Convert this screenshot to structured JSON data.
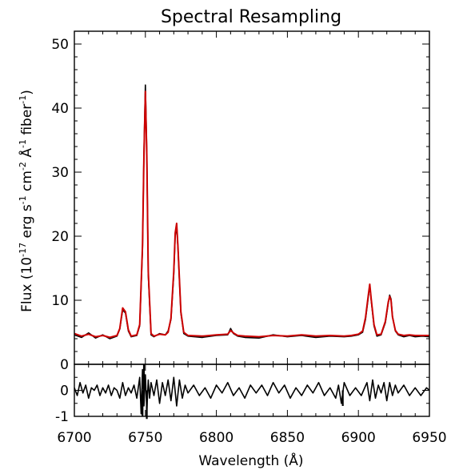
{
  "chart_data": [
    {
      "type": "line",
      "title": "Spectral Resampling",
      "xlabel": "",
      "ylabel_parts": {
        "base": "Flux (10",
        "exp1": "-17",
        "mid1": " erg s",
        "exp2": "-1",
        "mid2": " cm",
        "exp3": "-2",
        "mid3": " Å",
        "exp4": "-1",
        "mid4": " fiber",
        "exp5": "-1",
        "end": ")"
      },
      "xlim": [
        6700,
        6950
      ],
      "ylim": [
        0,
        52
      ],
      "yticks": [
        0,
        10,
        20,
        30,
        40,
        50
      ],
      "ytick_labels": [
        "0",
        "10",
        "20",
        "30",
        "40",
        "50"
      ],
      "series": [
        {
          "color": "#000000",
          "x": [
            6700,
            6705,
            6710,
            6715,
            6720,
            6725,
            6730,
            6732,
            6734,
            6736,
            6738,
            6740,
            6744,
            6746,
            6748,
            6749,
            6750,
            6751,
            6752,
            6754,
            6756,
            6760,
            6764,
            6766,
            6768,
            6770,
            6771,
            6772,
            6773,
            6775,
            6777,
            6780,
            6790,
            6800,
            6808,
            6810,
            6812,
            6815,
            6820,
            6830,
            6840,
            6850,
            6860,
            6870,
            6880,
            6890,
            6895,
            6900,
            6903,
            6905,
            6907,
            6908,
            6909,
            6911,
            6913,
            6916,
            6919,
            6921,
            6922,
            6923,
            6924,
            6926,
            6928,
            6932,
            6936,
            6940,
            6945,
            6950
          ],
          "values": [
            4.6,
            4.2,
            4.9,
            4.1,
            4.6,
            4.0,
            4.4,
            5.5,
            8.5,
            8.0,
            5.2,
            4.3,
            4.5,
            6.0,
            18.0,
            33.0,
            43.6,
            33.0,
            14.0,
            4.6,
            4.3,
            4.8,
            4.6,
            5.2,
            7.0,
            14.0,
            20.0,
            21.8,
            18.0,
            8.0,
            4.8,
            4.4,
            4.2,
            4.5,
            4.6,
            5.6,
            4.8,
            4.4,
            4.2,
            4.1,
            4.6,
            4.3,
            4.5,
            4.2,
            4.4,
            4.3,
            4.4,
            4.6,
            5.0,
            7.0,
            10.5,
            12.3,
            10.0,
            6.0,
            4.4,
            4.6,
            6.5,
            9.5,
            10.8,
            10.2,
            7.5,
            5.2,
            4.6,
            4.3,
            4.5,
            4.3,
            4.4,
            4.3
          ]
        },
        {
          "color": "#cc0000",
          "x": [
            6700,
            6705,
            6710,
            6715,
            6720,
            6725,
            6730,
            6732,
            6734,
            6736,
            6738,
            6740,
            6744,
            6746,
            6748,
            6749,
            6750,
            6751,
            6752,
            6754,
            6756,
            6760,
            6764,
            6766,
            6768,
            6770,
            6771,
            6772,
            6773,
            6775,
            6777,
            6780,
            6790,
            6800,
            6808,
            6810,
            6812,
            6815,
            6820,
            6830,
            6840,
            6850,
            6860,
            6870,
            6880,
            6890,
            6895,
            6900,
            6903,
            6905,
            6907,
            6908,
            6909,
            6911,
            6913,
            6916,
            6919,
            6921,
            6922,
            6923,
            6924,
            6926,
            6928,
            6932,
            6936,
            6940,
            6945,
            6950
          ],
          "values": [
            4.8,
            4.4,
            4.7,
            4.3,
            4.5,
            4.2,
            4.5,
            5.6,
            8.8,
            8.2,
            5.4,
            4.4,
            4.6,
            6.2,
            18.5,
            32.5,
            42.6,
            32.5,
            14.5,
            4.8,
            4.4,
            4.7,
            4.6,
            5.0,
            7.2,
            14.5,
            20.5,
            22.0,
            18.2,
            8.2,
            5.0,
            4.5,
            4.4,
            4.6,
            4.7,
            5.3,
            4.9,
            4.5,
            4.4,
            4.3,
            4.5,
            4.4,
            4.6,
            4.4,
            4.5,
            4.4,
            4.5,
            4.7,
            5.2,
            7.3,
            10.8,
            12.5,
            10.2,
            6.2,
            4.6,
            4.7,
            6.7,
            9.7,
            10.6,
            10.0,
            7.4,
            5.3,
            4.7,
            4.5,
            4.6,
            4.5,
            4.5,
            4.5
          ]
        }
      ]
    },
    {
      "type": "line",
      "title": "",
      "xlabel": "Wavelength (Å)",
      "ylabel": "",
      "xlim": [
        6700,
        6950
      ],
      "xticks": [
        6700,
        6750,
        6800,
        6850,
        6900,
        6950
      ],
      "xtick_labels": [
        "6700",
        "6750",
        "6800",
        "6850",
        "6900",
        "6950"
      ],
      "ylim": [
        -1,
        1
      ],
      "yticks": [
        -1,
        0
      ],
      "ytick_labels": [
        "-1",
        "0"
      ],
      "series": [
        {
          "color": "#000000",
          "x": [
            6700,
            6702,
            6704,
            6706,
            6708,
            6710,
            6712,
            6714,
            6716,
            6718,
            6720,
            6722,
            6724,
            6726,
            6728,
            6730,
            6732,
            6734,
            6736,
            6738,
            6740,
            6742,
            6744,
            6746,
            6747,
            6748,
            6749,
            6750,
            6751,
            6752,
            6753,
            6754,
            6756,
            6758,
            6760,
            6762,
            6764,
            6766,
            6768,
            6770,
            6772,
            6774,
            6776,
            6778,
            6780,
            6784,
            6788,
            6792,
            6796,
            6800,
            6804,
            6808,
            6812,
            6816,
            6820,
            6824,
            6828,
            6832,
            6836,
            6840,
            6844,
            6848,
            6852,
            6856,
            6860,
            6864,
            6868,
            6872,
            6876,
            6880,
            6884,
            6886,
            6888,
            6890,
            6894,
            6898,
            6902,
            6906,
            6908,
            6910,
            6912,
            6914,
            6916,
            6918,
            6920,
            6922,
            6924,
            6926,
            6928,
            6932,
            6936,
            6940,
            6944,
            6948,
            6950
          ],
          "values": [
            0.1,
            -0.2,
            0.3,
            -0.1,
            0.2,
            -0.3,
            0.1,
            0.0,
            0.2,
            -0.2,
            0.1,
            -0.1,
            0.2,
            -0.2,
            0.1,
            0.0,
            -0.3,
            0.3,
            -0.2,
            0.1,
            -0.1,
            0.2,
            -0.3,
            0.5,
            -0.9,
            0.8,
            -0.6,
            0.6,
            -0.8,
            0.4,
            -0.3,
            0.3,
            -0.2,
            0.4,
            -0.5,
            0.3,
            -0.2,
            0.4,
            -0.4,
            0.5,
            -0.6,
            0.4,
            -0.3,
            0.2,
            -0.1,
            0.2,
            -0.2,
            0.1,
            -0.3,
            0.2,
            -0.1,
            0.3,
            -0.2,
            0.1,
            -0.3,
            0.2,
            -0.1,
            0.2,
            -0.2,
            0.3,
            -0.1,
            0.2,
            -0.3,
            0.1,
            -0.2,
            0.2,
            -0.1,
            0.3,
            -0.2,
            0.1,
            -0.3,
            0.2,
            -0.5,
            0.3,
            -0.2,
            0.1,
            -0.2,
            0.3,
            -0.4,
            0.4,
            -0.3,
            0.2,
            -0.1,
            0.3,
            -0.4,
            0.3,
            -0.2,
            0.2,
            -0.1,
            0.2,
            -0.2,
            0.1,
            -0.2,
            0.1,
            0.0
          ],
          "spikes": [
            {
              "x": 6748,
              "value": -1.0
            },
            {
              "x": 6749,
              "value": 1.0
            },
            {
              "x": 6751,
              "value": -1.1
            },
            {
              "x": 6889,
              "value": -0.6
            }
          ]
        }
      ]
    }
  ]
}
